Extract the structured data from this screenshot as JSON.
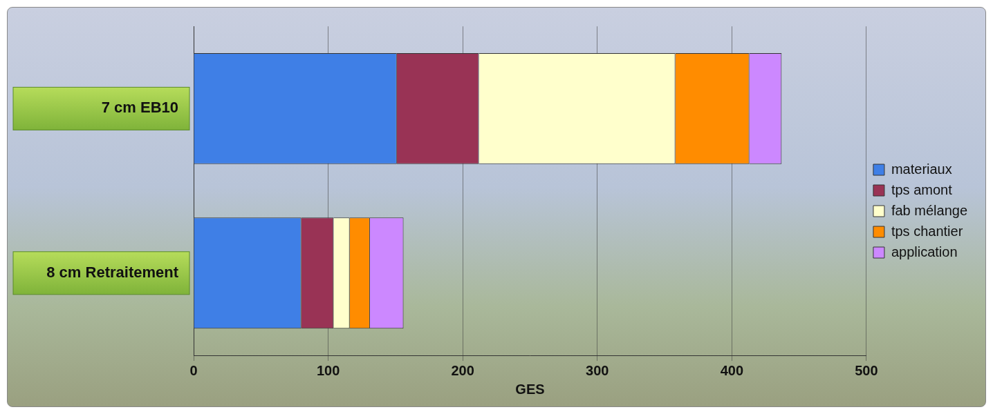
{
  "chart_data": {
    "type": "bar",
    "orientation": "horizontal",
    "stacked": true,
    "categories": [
      "7 cm EB10",
      "8 cm Retraitement"
    ],
    "x_label": "GES",
    "series": [
      {
        "name": "materiaux",
        "color": "#3f7fe6",
        "values": [
          151,
          80
        ]
      },
      {
        "name": "tps amont",
        "color": "#993355",
        "values": [
          61,
          24
        ]
      },
      {
        "name": "fab mélange",
        "color": "#ffffcc",
        "values": [
          146,
          12
        ]
      },
      {
        "name": "tps chantier",
        "color": "#ff8c00",
        "values": [
          55,
          15
        ]
      },
      {
        "name": "application",
        "color": "#cc88ff",
        "values": [
          24,
          25
        ]
      }
    ],
    "xlim": [
      0,
      500
    ],
    "xticks": [
      0,
      100,
      200,
      300,
      400,
      500
    ],
    "grid": true,
    "legend": "right"
  }
}
